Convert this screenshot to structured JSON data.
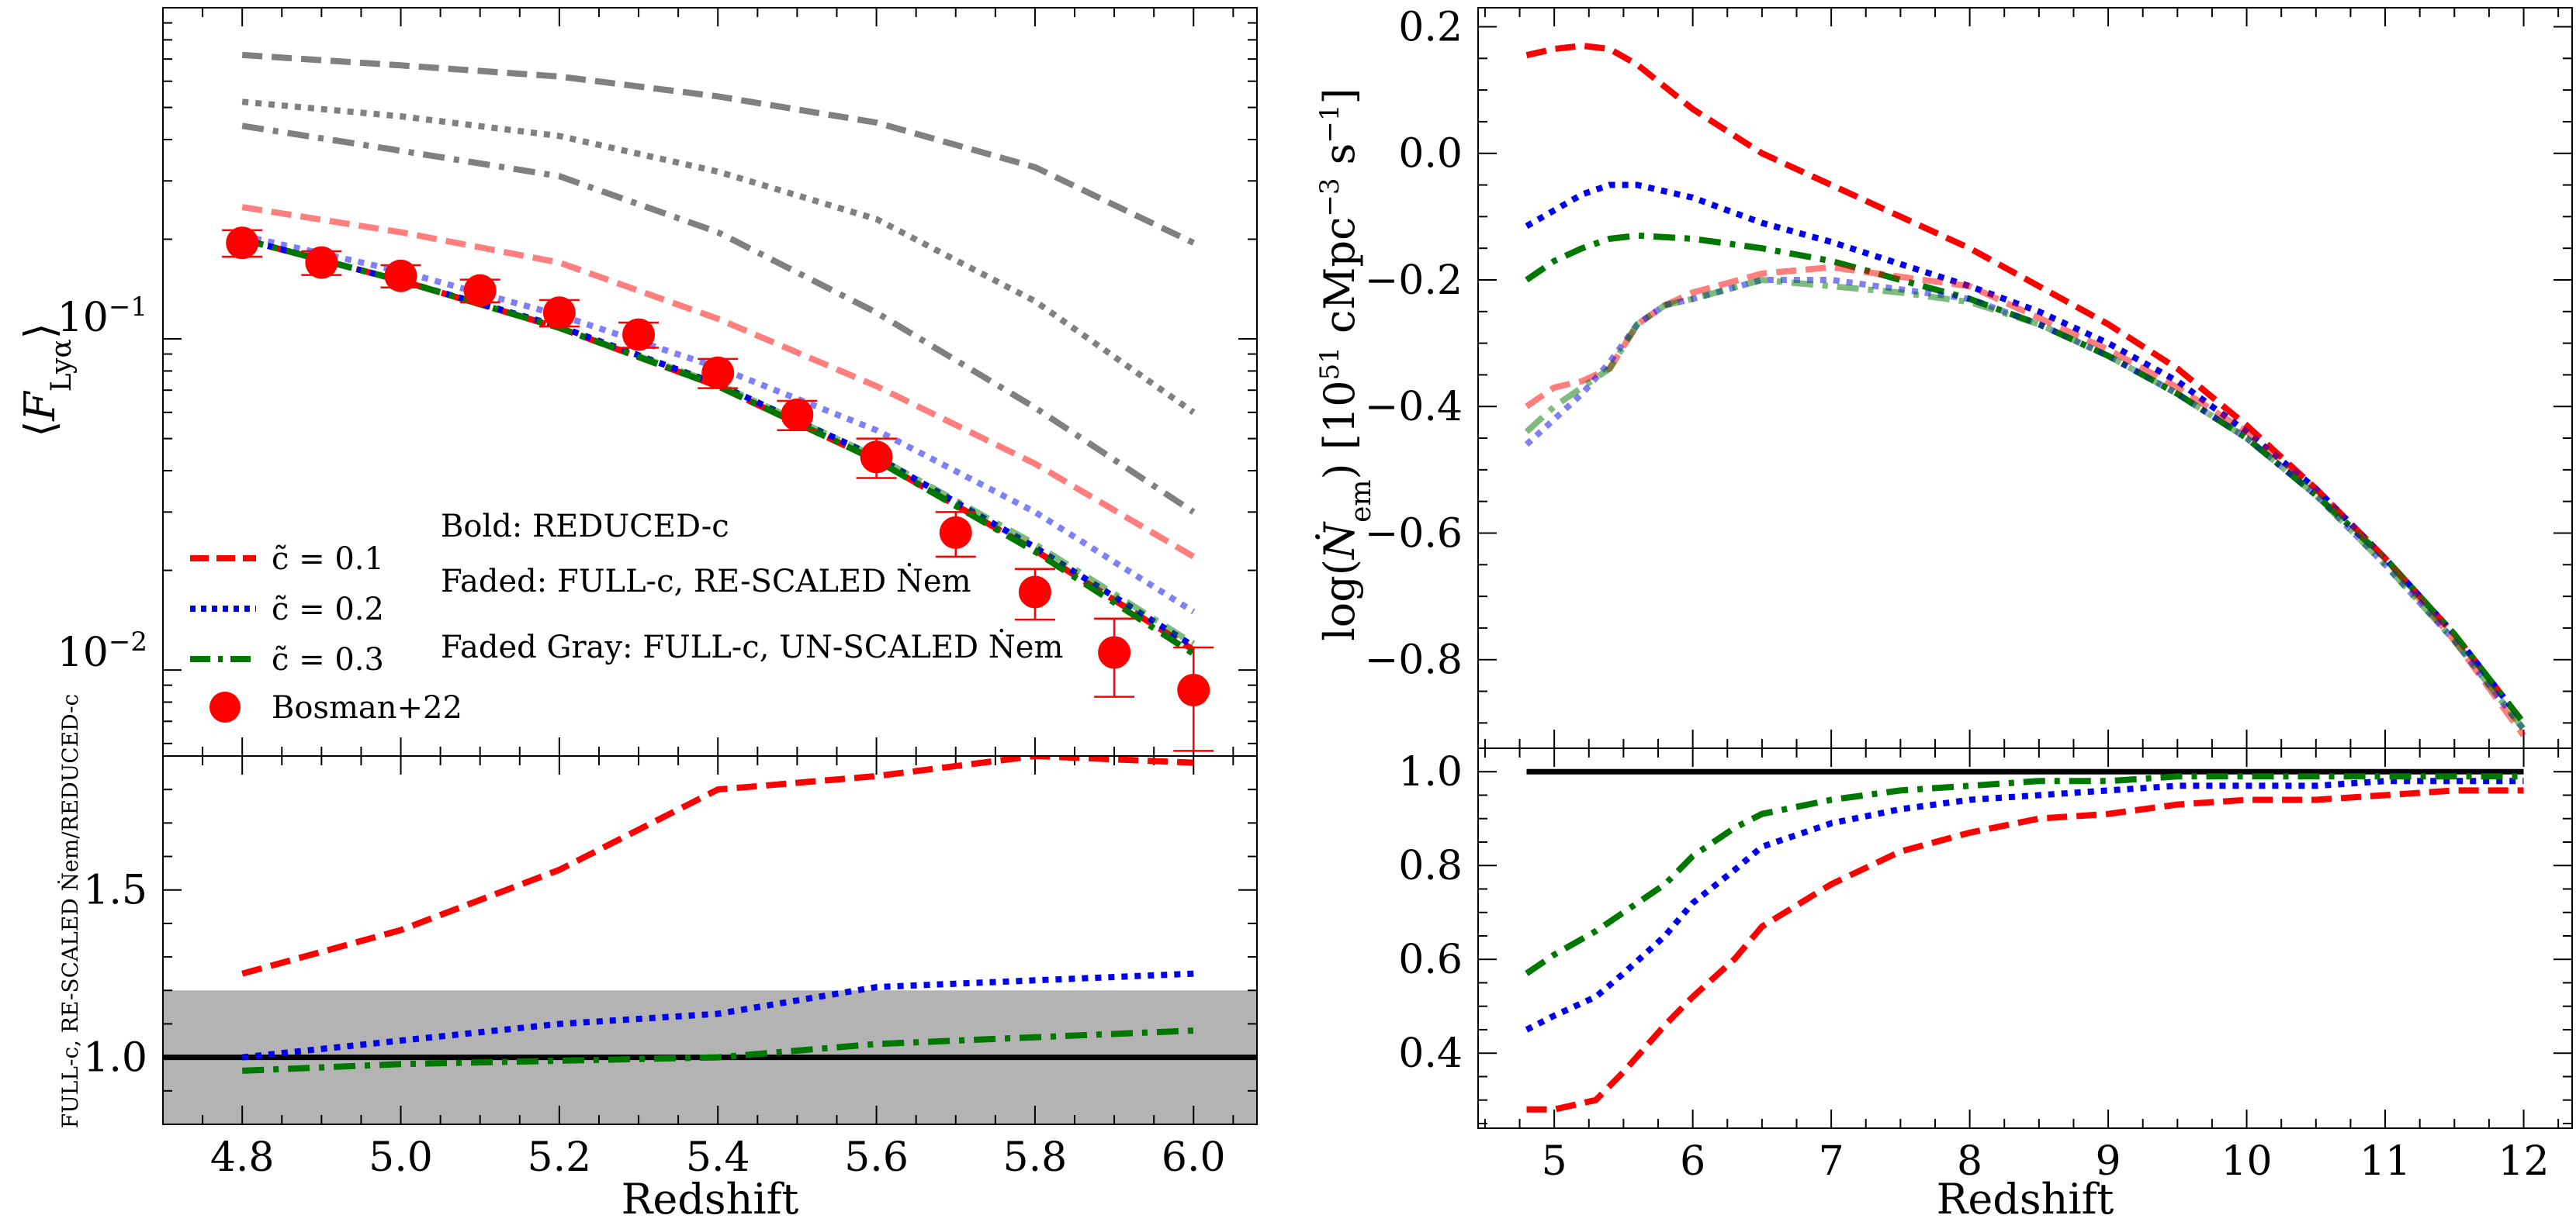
{
  "chart_data": [
    {
      "id": "top-left",
      "type": "line",
      "yscale": "log",
      "xlim": [
        4.7,
        6.08
      ],
      "ylim": [
        0.0055,
        1.0
      ],
      "ylabel": "⟨F_Lyα⟩",
      "ylabel_html": {
        "pre": "⟨",
        "main": "F",
        "sub": "Lyα",
        "post": "⟩"
      },
      "yticklabels": [
        {
          "value": 0.1,
          "base": "10",
          "exp": "−1"
        },
        {
          "value": 0.01,
          "base": "10",
          "exp": "−2"
        }
      ],
      "legend": {
        "position": "lower-left",
        "entries": [
          {
            "label": "c̃ = 0.1",
            "color": "#ff0000",
            "dash": "dashed"
          },
          {
            "label": "c̃ = 0.2",
            "color": "#0000ee",
            "dash": "dotted"
          },
          {
            "label": "c̃ = 0.3",
            "color": "#007700",
            "dash": "dashdot"
          },
          {
            "label": "Bosman+22",
            "color": "#ff0000",
            "marker": "circle"
          }
        ]
      },
      "annotations": [
        {
          "id": "ann-bold",
          "text": "Bold: REDUCED-c"
        },
        {
          "id": "ann-faded",
          "text": "Faded: FULL-c, RE-SCALED Ṅem"
        },
        {
          "id": "ann-gray",
          "text": "Faded Gray: FULL-c, UN-SCALED Ṅem"
        }
      ],
      "x": [
        4.8,
        5.0,
        5.2,
        5.4,
        5.6,
        5.8,
        6.0
      ],
      "series": [
        {
          "name": "c̃ = 0.1 bold",
          "color": "#ff0000",
          "opacity": 1.0,
          "dash": "dashed",
          "values": [
            0.2,
            0.15,
            0.108,
            0.072,
            0.043,
            0.023,
            0.0115
          ]
        },
        {
          "name": "c̃ = 0.2 bold",
          "color": "#0000ee",
          "opacity": 1.0,
          "dash": "dotted",
          "values": [
            0.2,
            0.15,
            0.109,
            0.073,
            0.044,
            0.0235,
            0.0118
          ]
        },
        {
          "name": "c̃ = 0.3 bold",
          "color": "#007700",
          "opacity": 1.0,
          "dash": "dashdot",
          "values": [
            0.2,
            0.15,
            0.108,
            0.072,
            0.043,
            0.0228,
            0.0112
          ]
        },
        {
          "name": "c̃ = 0.1 faded",
          "color": "#ff0000",
          "opacity": 0.5,
          "dash": "dashed",
          "values": [
            0.25,
            0.21,
            0.17,
            0.115,
            0.072,
            0.042,
            0.022
          ]
        },
        {
          "name": "c̃ = 0.2 faded",
          "color": "#0000ee",
          "opacity": 0.5,
          "dash": "dotted",
          "values": [
            0.205,
            0.16,
            0.118,
            0.082,
            0.053,
            0.03,
            0.015
          ]
        },
        {
          "name": "c̃ = 0.3 faded",
          "color": "#007700",
          "opacity": 0.5,
          "dash": "dashdot",
          "values": [
            0.2,
            0.15,
            0.108,
            0.073,
            0.044,
            0.024,
            0.012
          ]
        },
        {
          "name": "c̃ = 0.1 gray",
          "color": "#808080",
          "opacity": 1.0,
          "dash": "dashed",
          "values": [
            0.72,
            0.67,
            0.62,
            0.54,
            0.45,
            0.33,
            0.195
          ]
        },
        {
          "name": "c̃ = 0.2 gray",
          "color": "#808080",
          "opacity": 1.0,
          "dash": "dotted",
          "values": [
            0.52,
            0.47,
            0.41,
            0.32,
            0.23,
            0.13,
            0.06
          ]
        },
        {
          "name": "c̃ = 0.3 gray",
          "color": "#808080",
          "opacity": 1.0,
          "dash": "dashdot",
          "values": [
            0.44,
            0.37,
            0.31,
            0.21,
            0.12,
            0.062,
            0.03
          ]
        }
      ],
      "points": {
        "name": "Bosman+22",
        "color": "#ff0000",
        "x": [
          4.8,
          4.9,
          5.0,
          5.1,
          5.2,
          5.3,
          5.4,
          5.5,
          5.6,
          5.7,
          5.8,
          5.9,
          6.0
        ],
        "y": [
          0.195,
          0.17,
          0.155,
          0.14,
          0.12,
          0.103,
          0.079,
          0.059,
          0.044,
          0.026,
          0.0172,
          0.0113,
          0.0087
        ],
        "err": [
          0.018,
          0.014,
          0.012,
          0.011,
          0.011,
          0.009,
          0.008,
          0.006,
          0.006,
          0.004,
          0.003,
          0.003,
          0.003
        ]
      }
    },
    {
      "id": "bottom-left",
      "type": "line",
      "xlim": [
        4.7,
        6.08
      ],
      "ylim": [
        0.8,
        1.9
      ],
      "xlabel": "Redshift",
      "ylabel": "FULL-c, RE-SCALED Ṅem/REDUCED-c",
      "xticklabels": [
        "4.8",
        "5.0",
        "5.2",
        "5.4",
        "5.6",
        "5.8",
        "6.0"
      ],
      "yticklabels": [
        "1.0",
        "1.5"
      ],
      "band": {
        "from": 0.8,
        "to": 1.2,
        "color": "#b3b3b3"
      },
      "reference": {
        "value": 1.0,
        "color": "#000000"
      },
      "x": [
        4.8,
        5.0,
        5.2,
        5.4,
        5.6,
        5.8,
        6.0
      ],
      "series": [
        {
          "name": "c̃ = 0.1",
          "color": "#ff0000",
          "dash": "dashed",
          "values": [
            1.25,
            1.38,
            1.56,
            1.8,
            1.84,
            1.9,
            1.88
          ]
        },
        {
          "name": "c̃ = 0.2",
          "color": "#0000ee",
          "dash": "dotted",
          "values": [
            1.0,
            1.05,
            1.1,
            1.13,
            1.21,
            1.23,
            1.25
          ]
        },
        {
          "name": "c̃ = 0.3",
          "color": "#007700",
          "dash": "dashdot",
          "values": [
            0.96,
            0.98,
            0.99,
            1.0,
            1.04,
            1.06,
            1.08
          ]
        }
      ]
    },
    {
      "id": "top-right",
      "type": "line",
      "xlim": [
        4.45,
        12.35
      ],
      "ylim": [
        -0.94,
        0.23
      ],
      "ylabel": "log(Ṅem) [10^51 cMpc^-3 s^-1]",
      "ylabel_html": {
        "pre": "log(",
        "main": "Ṅ",
        "sub": "em",
        "mid": ") [10",
        "exp1": "51",
        "mid2": " cMpc",
        "exp2": "−3",
        "mid3": " s",
        "exp3": "−1",
        "post": "]"
      },
      "yticklabels": [
        "0.2",
        "0.0",
        "−0.2",
        "−0.4",
        "−0.6",
        "−0.8"
      ],
      "series": [
        {
          "name": "c̃ = 0.1 bold",
          "color": "#ff0000",
          "opacity": 1.0,
          "dash": "dashed",
          "x": [
            4.8,
            5.0,
            5.2,
            5.4,
            5.6,
            6.0,
            6.5,
            7.0,
            7.5,
            8.0,
            8.5,
            9.0,
            9.5,
            10.0,
            10.5,
            11.0,
            11.5,
            12.0
          ],
          "values": [
            0.155,
            0.165,
            0.17,
            0.165,
            0.14,
            0.07,
            0.0,
            -0.05,
            -0.1,
            -0.15,
            -0.21,
            -0.27,
            -0.34,
            -0.43,
            -0.53,
            -0.64,
            -0.76,
            -0.9
          ]
        },
        {
          "name": "c̃ = 0.2 bold",
          "color": "#0000ee",
          "opacity": 1.0,
          "dash": "dotted",
          "x": [
            4.8,
            5.0,
            5.2,
            5.4,
            5.6,
            6.0,
            6.5,
            7.0,
            7.5,
            8.0,
            8.5,
            9.0,
            9.5,
            10.0,
            10.5,
            11.0,
            11.5,
            12.0
          ],
          "values": [
            -0.115,
            -0.09,
            -0.065,
            -0.05,
            -0.05,
            -0.07,
            -0.11,
            -0.14,
            -0.175,
            -0.21,
            -0.25,
            -0.3,
            -0.36,
            -0.44,
            -0.53,
            -0.64,
            -0.76,
            -0.9
          ]
        },
        {
          "name": "c̃ = 0.3 bold",
          "color": "#007700",
          "opacity": 1.0,
          "dash": "dashdot",
          "x": [
            4.8,
            5.0,
            5.2,
            5.4,
            5.6,
            6.0,
            6.5,
            7.0,
            7.5,
            8.0,
            8.5,
            9.0,
            9.5,
            10.0,
            10.5,
            11.0,
            11.5,
            12.0
          ],
          "values": [
            -0.2,
            -0.17,
            -0.15,
            -0.135,
            -0.13,
            -0.135,
            -0.15,
            -0.17,
            -0.2,
            -0.23,
            -0.27,
            -0.32,
            -0.38,
            -0.45,
            -0.54,
            -0.64,
            -0.76,
            -0.9
          ]
        },
        {
          "name": "c̃ = 0.1 faded",
          "color": "#ff0000",
          "opacity": 0.5,
          "dash": "dashed",
          "x": [
            4.8,
            5.0,
            5.2,
            5.4,
            5.6,
            5.8,
            6.0,
            6.5,
            7.0,
            7.5,
            8.0,
            8.5,
            9.0,
            9.5,
            10.0,
            10.5,
            11.0,
            11.5,
            12.0
          ],
          "values": [
            -0.4,
            -0.37,
            -0.36,
            -0.34,
            -0.27,
            -0.24,
            -0.22,
            -0.19,
            -0.18,
            -0.195,
            -0.21,
            -0.26,
            -0.31,
            -0.37,
            -0.44,
            -0.53,
            -0.64,
            -0.77,
            -0.92
          ]
        },
        {
          "name": "c̃ = 0.2 faded",
          "color": "#0000ee",
          "opacity": 0.5,
          "dash": "dotted",
          "x": [
            4.8,
            5.0,
            5.2,
            5.4,
            5.6,
            5.8,
            6.0,
            6.5,
            7.0,
            7.5,
            8.0,
            8.5,
            9.0,
            9.5,
            10.0,
            10.5,
            11.0,
            11.5,
            12.0
          ],
          "values": [
            -0.46,
            -0.42,
            -0.38,
            -0.33,
            -0.27,
            -0.24,
            -0.23,
            -0.2,
            -0.2,
            -0.215,
            -0.23,
            -0.27,
            -0.32,
            -0.38,
            -0.45,
            -0.54,
            -0.65,
            -0.77,
            -0.91
          ]
        },
        {
          "name": "c̃ = 0.3 faded",
          "color": "#007700",
          "opacity": 0.5,
          "dash": "dashdot",
          "x": [
            4.8,
            5.0,
            5.2,
            5.4,
            5.6,
            5.8,
            6.0,
            6.5,
            7.0,
            7.5,
            8.0,
            8.5,
            9.0,
            9.5,
            10.0,
            10.5,
            11.0,
            11.5,
            12.0
          ],
          "values": [
            -0.44,
            -0.4,
            -0.37,
            -0.34,
            -0.27,
            -0.24,
            -0.23,
            -0.2,
            -0.21,
            -0.22,
            -0.235,
            -0.27,
            -0.32,
            -0.38,
            -0.45,
            -0.54,
            -0.65,
            -0.77,
            -0.91
          ]
        }
      ]
    },
    {
      "id": "bottom-right",
      "type": "line",
      "xlim": [
        4.45,
        12.35
      ],
      "ylim": [
        0.24,
        1.05
      ],
      "xlabel": "Redshift",
      "xticklabels": [
        "5",
        "6",
        "7",
        "8",
        "9",
        "10",
        "11",
        "12"
      ],
      "yticklabels": [
        "0.4",
        "0.6",
        "0.8",
        "1.0"
      ],
      "reference": {
        "value": 1.0,
        "color": "#000000"
      },
      "series": [
        {
          "name": "c̃ = 0.1",
          "color": "#ff0000",
          "dash": "dashed",
          "x": [
            4.8,
            5.0,
            5.3,
            5.5,
            5.8,
            6.0,
            6.3,
            6.5,
            7.0,
            7.5,
            8.0,
            8.5,
            9.0,
            9.5,
            10.0,
            10.5,
            11.0,
            11.5,
            12.0
          ],
          "values": [
            0.28,
            0.28,
            0.3,
            0.36,
            0.46,
            0.52,
            0.6,
            0.67,
            0.76,
            0.83,
            0.87,
            0.9,
            0.91,
            0.93,
            0.94,
            0.94,
            0.95,
            0.96,
            0.96
          ]
        },
        {
          "name": "c̃ = 0.2",
          "color": "#0000ee",
          "dash": "dotted",
          "x": [
            4.8,
            5.0,
            5.3,
            5.5,
            5.8,
            6.0,
            6.3,
            6.5,
            7.0,
            7.5,
            8.0,
            8.5,
            9.0,
            9.5,
            10.0,
            10.5,
            11.0,
            11.5,
            12.0
          ],
          "values": [
            0.45,
            0.48,
            0.52,
            0.57,
            0.65,
            0.72,
            0.79,
            0.84,
            0.89,
            0.92,
            0.94,
            0.95,
            0.96,
            0.97,
            0.97,
            0.97,
            0.98,
            0.98,
            0.98
          ]
        },
        {
          "name": "c̃ = 0.3",
          "color": "#007700",
          "dash": "dashdot",
          "x": [
            4.8,
            5.0,
            5.3,
            5.5,
            5.8,
            6.0,
            6.3,
            6.5,
            7.0,
            7.5,
            8.0,
            8.5,
            9.0,
            9.5,
            10.0,
            10.5,
            11.0,
            11.5,
            12.0
          ],
          "values": [
            0.57,
            0.61,
            0.66,
            0.7,
            0.76,
            0.82,
            0.88,
            0.91,
            0.94,
            0.96,
            0.97,
            0.98,
            0.98,
            0.99,
            0.99,
            0.99,
            0.99,
            0.99,
            0.99
          ]
        }
      ]
    }
  ]
}
